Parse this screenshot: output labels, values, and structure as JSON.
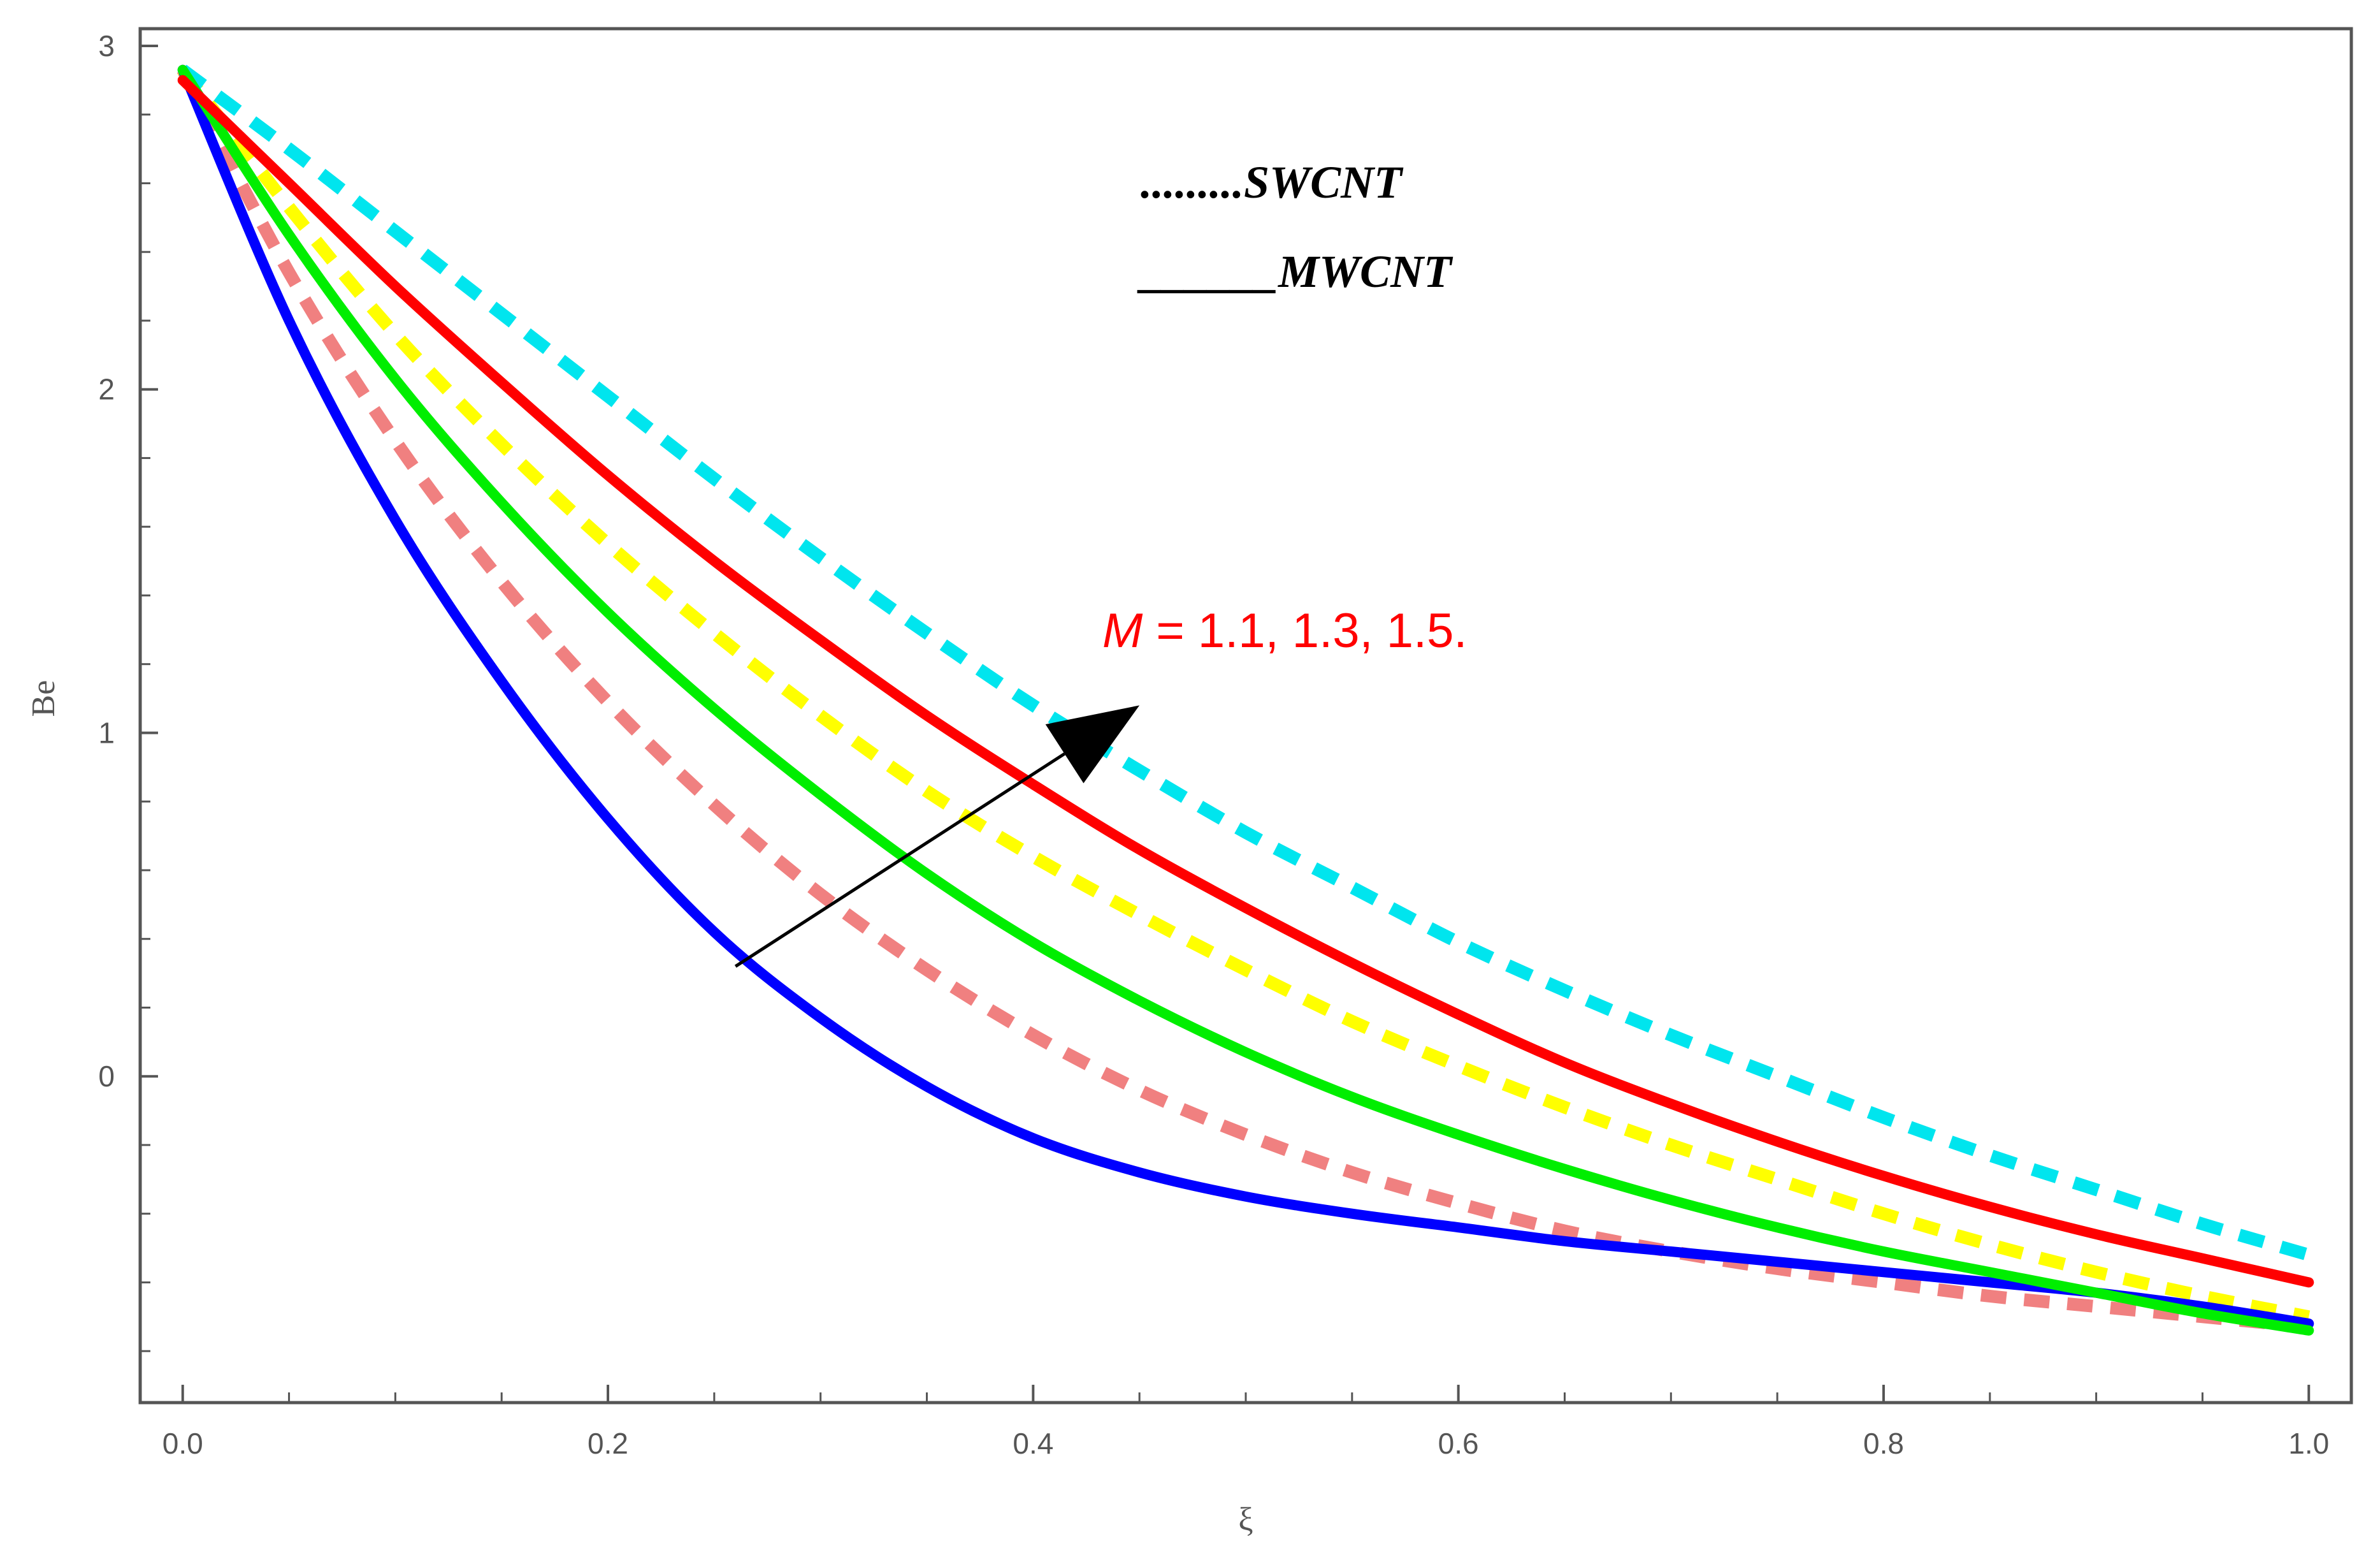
{
  "chart_data": {
    "type": "line",
    "title": "",
    "xlabel": "ξ",
    "ylabel": "Be",
    "xlim": [
      -0.02,
      1.02
    ],
    "ylim": [
      -0.95,
      3.05
    ],
    "xticks": [
      0.0,
      0.2,
      0.4,
      0.6,
      0.8,
      1.0
    ],
    "xtick_labels": [
      "0.0",
      "0.2",
      "0.4",
      "0.6",
      "0.8",
      "1.0"
    ],
    "yticks": [
      0,
      1,
      2,
      3
    ],
    "ytick_labels": [
      "0",
      "1",
      "2",
      "3"
    ],
    "grid": false,
    "legend": [
      {
        "style": "dotted",
        "dots": ".........",
        "label": "SWCNT"
      },
      {
        "style": "solid",
        "line": "______",
        "label": "MWCNT"
      }
    ],
    "annotation": {
      "symbol": "M",
      "text": " = 1.1, 1.3, 1.5.",
      "color": "#ff0000",
      "arrow_from": [
        0.26,
        0.32
      ],
      "arrow_to": [
        0.45,
        1.08
      ]
    },
    "x": [
      0.0,
      0.05,
      0.1,
      0.15,
      0.2,
      0.25,
      0.3,
      0.35,
      0.4,
      0.45,
      0.5,
      0.55,
      0.6,
      0.65,
      0.7,
      0.75,
      0.8,
      0.85,
      0.9,
      0.95,
      1.0
    ],
    "series": [
      {
        "name": "MWCNT M=1.1",
        "style": "solid",
        "color": "#0000ff",
        "values": [
          2.93,
          2.2,
          1.62,
          1.15,
          0.75,
          0.42,
          0.17,
          -0.03,
          -0.18,
          -0.28,
          -0.35,
          -0.4,
          -0.44,
          -0.48,
          -0.51,
          -0.54,
          -0.57,
          -0.6,
          -0.63,
          -0.67,
          -0.72
        ]
      },
      {
        "name": "SWCNT M=1.1",
        "style": "dashed",
        "color": "#f08080",
        "values": [
          2.93,
          2.34,
          1.85,
          1.44,
          1.09,
          0.79,
          0.53,
          0.31,
          0.12,
          -0.04,
          -0.17,
          -0.28,
          -0.37,
          -0.45,
          -0.51,
          -0.56,
          -0.6,
          -0.64,
          -0.67,
          -0.7,
          -0.73
        ]
      },
      {
        "name": "MWCNT M=1.3",
        "style": "solid",
        "color": "#00ee00",
        "values": [
          2.93,
          2.45,
          2.03,
          1.67,
          1.35,
          1.07,
          0.82,
          0.59,
          0.39,
          0.22,
          0.07,
          -0.06,
          -0.17,
          -0.27,
          -0.36,
          -0.44,
          -0.51,
          -0.57,
          -0.63,
          -0.69,
          -0.74
        ]
      },
      {
        "name": "SWCNT M=1.3",
        "style": "dashed",
        "color": "#ffff00",
        "values": [
          2.93,
          2.53,
          2.16,
          1.84,
          1.55,
          1.29,
          1.05,
          0.83,
          0.64,
          0.47,
          0.31,
          0.16,
          0.03,
          -0.09,
          -0.2,
          -0.3,
          -0.4,
          -0.49,
          -0.57,
          -0.64,
          -0.7
        ]
      },
      {
        "name": "MWCNT M=1.5",
        "style": "solid",
        "color": "#ff0000",
        "values": [
          2.9,
          2.6,
          2.3,
          2.02,
          1.75,
          1.5,
          1.27,
          1.05,
          0.85,
          0.66,
          0.49,
          0.33,
          0.18,
          0.04,
          -0.08,
          -0.19,
          -0.29,
          -0.38,
          -0.46,
          -0.53,
          -0.6
        ]
      },
      {
        "name": "SWCNT M=1.5",
        "style": "dashed",
        "color": "#00e5ee",
        "values": [
          2.93,
          2.7,
          2.46,
          2.22,
          1.98,
          1.74,
          1.51,
          1.29,
          1.08,
          0.89,
          0.71,
          0.55,
          0.39,
          0.25,
          0.12,
          0.0,
          -0.12,
          -0.23,
          -0.33,
          -0.43,
          -0.52
        ]
      }
    ]
  }
}
